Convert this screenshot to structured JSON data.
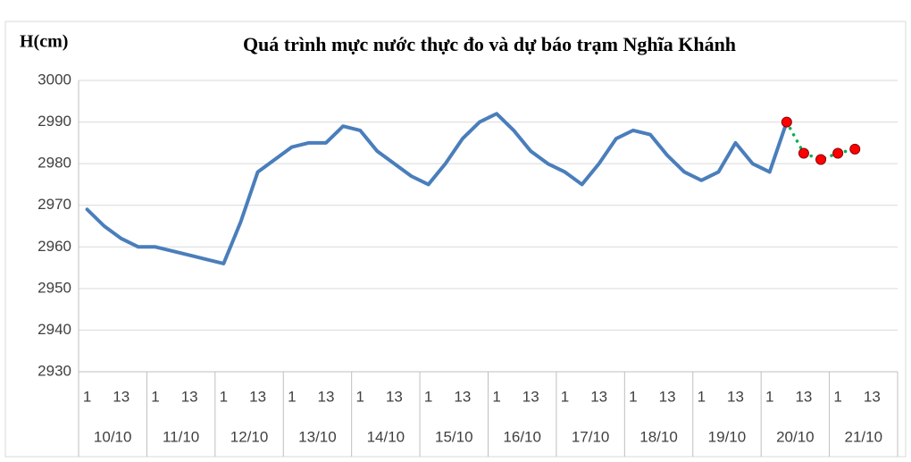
{
  "chart_data": {
    "type": "line",
    "title": "Quá trình mực nước thực đo và dự báo trạm Nghĩa Khánh",
    "y_label": "H(cm)",
    "categories": [
      "1",
      null,
      "13",
      null,
      "1",
      null,
      "13",
      null,
      "1",
      null,
      "13",
      null,
      "1",
      null,
      "13",
      null,
      "1",
      null,
      "13",
      null,
      "1",
      null,
      "13",
      null,
      "1",
      null,
      "13",
      null,
      "1",
      null,
      "13",
      null,
      "1",
      null,
      "13",
      null,
      "1",
      null,
      "13",
      null,
      "1",
      null,
      "13",
      null,
      "1",
      null,
      "13",
      null
    ],
    "category_groups": [
      "10/10",
      "11/10",
      "12/10",
      "13/10",
      "14/10",
      "15/10",
      "16/10",
      "17/10",
      "18/10",
      "19/10",
      "20/10",
      "21/10"
    ],
    "series": [
      {
        "color": "#4a7ebb",
        "values": [
          2969,
          2965,
          2962,
          2960,
          2960,
          2959,
          2958,
          2957,
          2956,
          2966,
          2978,
          2981,
          2984,
          2985,
          2985,
          2989,
          2988,
          2983,
          2980,
          2977,
          2975,
          2980,
          2986,
          2990,
          2992,
          2988,
          2983,
          2980,
          2978,
          2975,
          2980,
          2986,
          2988,
          2987,
          2982,
          2978,
          2976,
          2978,
          2985,
          2980,
          2978,
          2990,
          null,
          null,
          null,
          null,
          null,
          null
        ]
      },
      {
        "color": "#00b050",
        "marker_color": "#ff0000",
        "style": "dotted",
        "values": [
          null,
          null,
          null,
          null,
          null,
          null,
          null,
          null,
          null,
          null,
          null,
          null,
          null,
          null,
          null,
          null,
          null,
          null,
          null,
          null,
          null,
          null,
          null,
          null,
          null,
          null,
          null,
          null,
          null,
          null,
          null,
          null,
          null,
          null,
          null,
          null,
          null,
          null,
          null,
          null,
          null,
          2990,
          2982.5,
          2981,
          2982.5,
          2983.5,
          null,
          null
        ]
      }
    ],
    "ylim": [
      2930,
      3000
    ],
    "yticks": [
      2930,
      2940,
      2950,
      2960,
      2970,
      2980,
      2990,
      3000
    ],
    "grid": true
  }
}
